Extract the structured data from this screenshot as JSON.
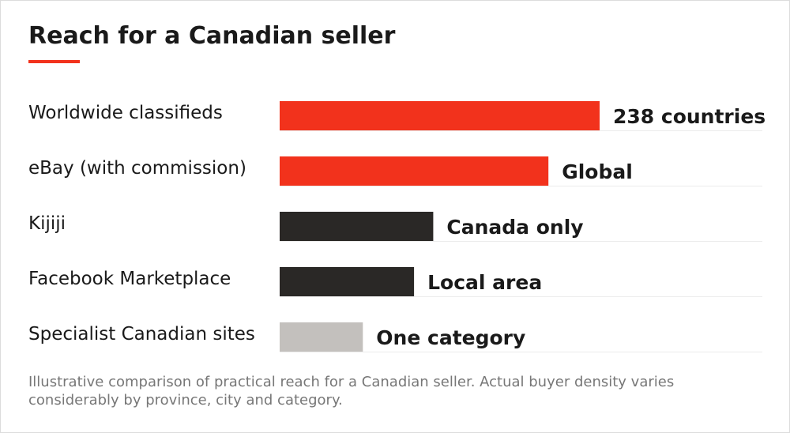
{
  "chart_data": {
    "type": "bar",
    "orientation": "horizontal",
    "title": "Reach for a Canadian seller",
    "categories": [
      "Worldwide classifieds",
      "eBay (with commission)",
      "Kijiji",
      "Facebook Marketplace",
      "Specialist Canadian sites"
    ],
    "values": [
      100,
      84,
      48,
      42,
      26
    ],
    "value_labels": [
      "238 countries",
      "Global",
      "Canada only",
      "Local area",
      "One category"
    ],
    "bar_colors": [
      "#f2321c",
      "#f2321c",
      "#2a2826",
      "#2a2826",
      "#c3c0bd"
    ],
    "xlim": [
      0,
      100
    ],
    "grid": false,
    "note": "Illustrative comparison of practical reach for a Canadian seller. Actual buyer density varies considerably by province, city and category."
  },
  "colors": {
    "accent": "#f2321c",
    "text": "#1a1a1a",
    "muted": "#777777",
    "rule": "#ececec"
  }
}
